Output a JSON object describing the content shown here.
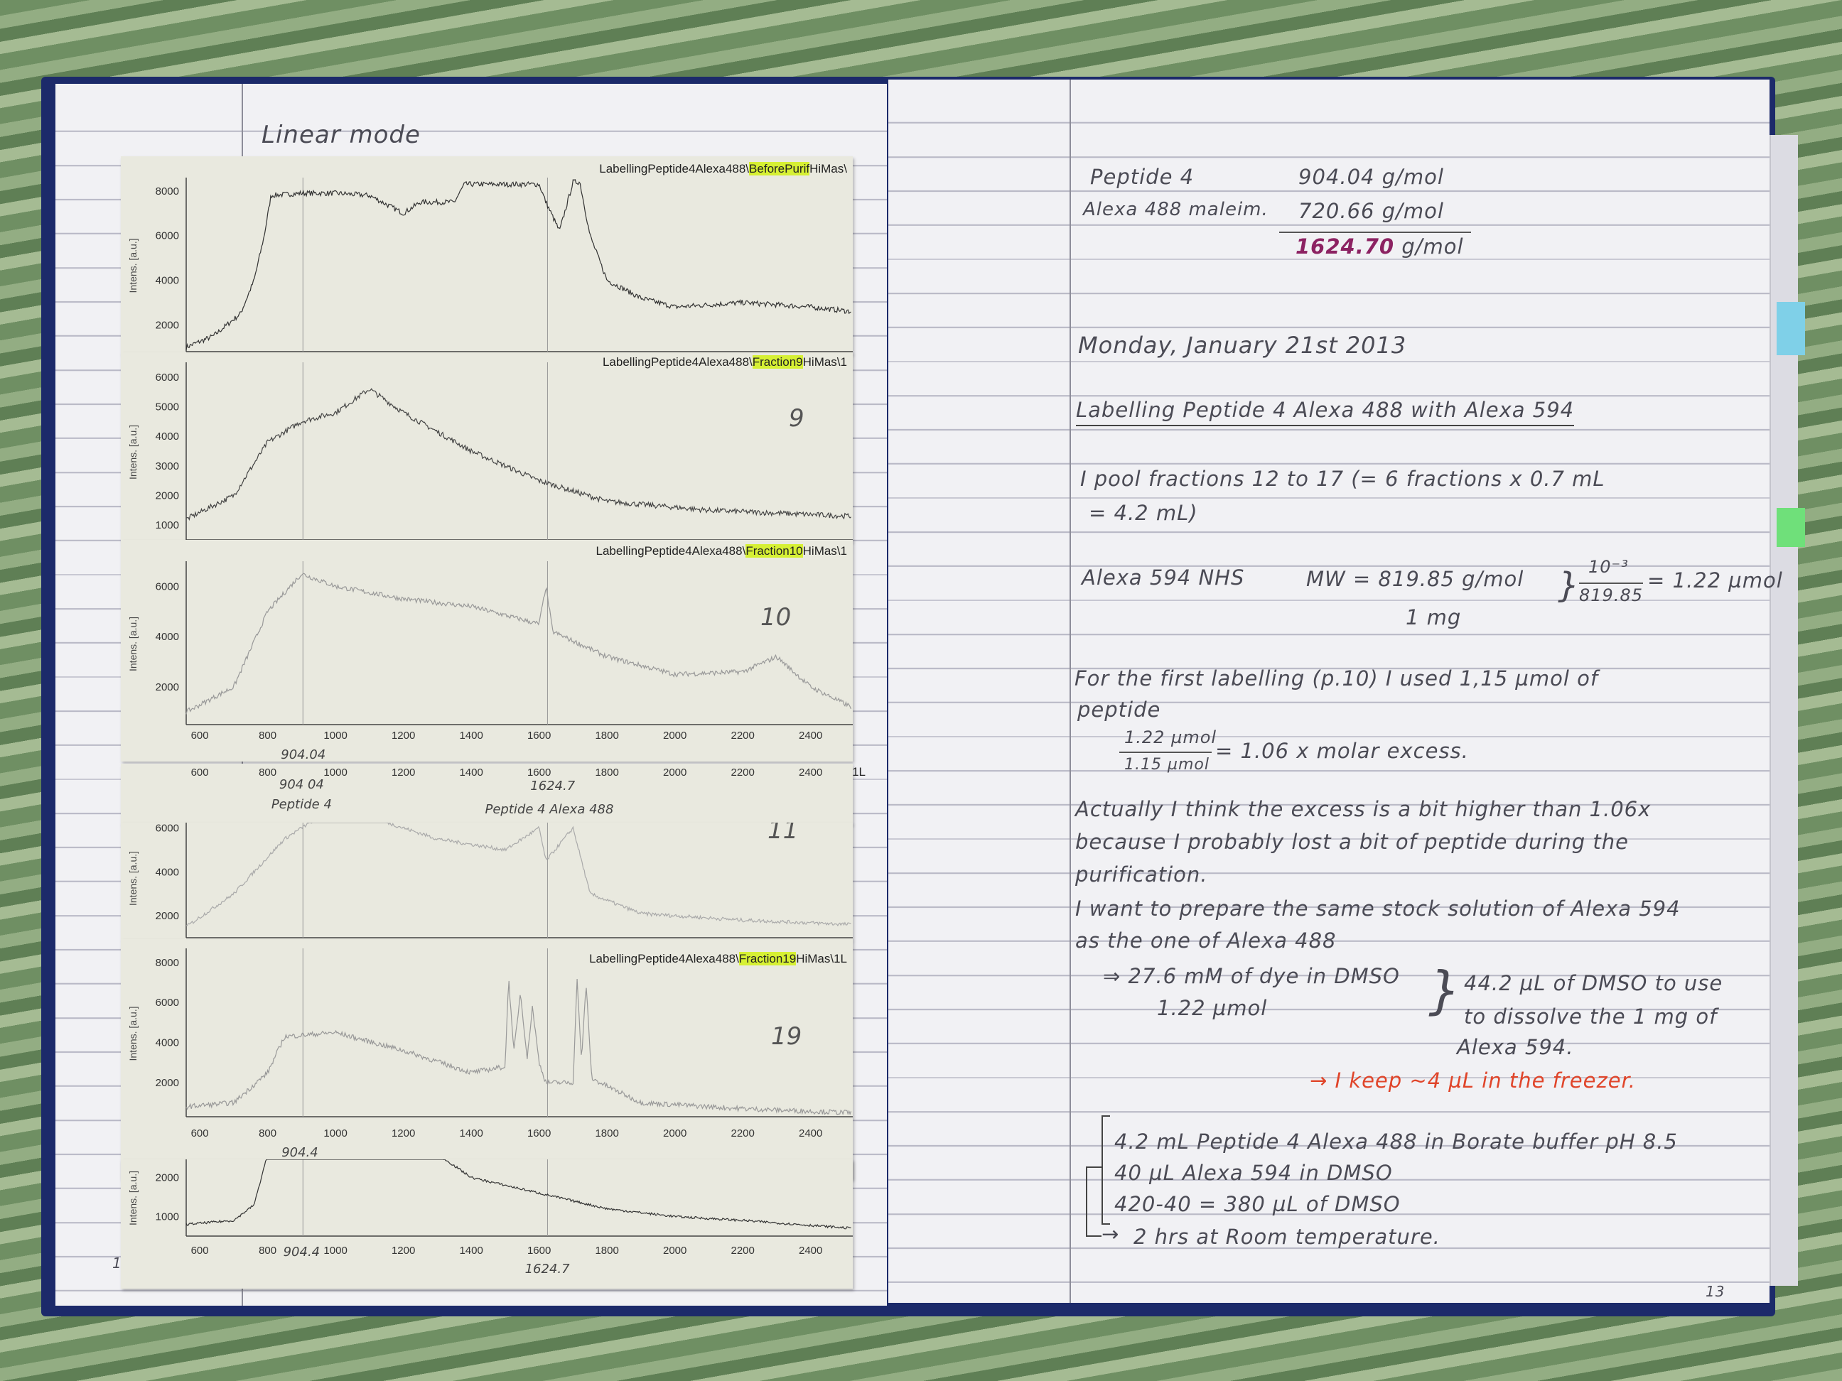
{
  "left_page": {
    "title": "Linear mode",
    "page_number": "12",
    "header_prefix": "LabellingPeptide4Alexa488\\",
    "y_axis_label": "Intens. [a.u.]",
    "x_ticks": [
      "600",
      "800",
      "1000",
      "1200",
      "1400",
      "1600",
      "1800",
      "2000",
      "2200",
      "2400"
    ],
    "strips": [
      {
        "sample": "BeforePurif",
        "suffix": "HiMas\\",
        "y_ticks": [
          "2000",
          "4000",
          "6000",
          "8000"
        ],
        "number": ""
      },
      {
        "sample": "Fraction9",
        "suffix": "HiMas\\1",
        "y_ticks": [
          "1000",
          "2000",
          "3000",
          "4000",
          "5000",
          "6000"
        ],
        "number": "9"
      },
      {
        "sample": "Fraction10",
        "suffix": "HiMas\\1",
        "y_ticks": [
          "2000",
          "4000",
          "6000"
        ],
        "number": "10",
        "annotations": [
          "904.04",
          "1624.7"
        ]
      },
      {
        "annotations": [
          "904 04",
          "Peptide 4",
          "1624.7",
          "Peptide 4 Alexa 488"
        ],
        "edge_text": "1L"
      },
      {
        "y_ticks": [
          "2000",
          "4000",
          "6000"
        ],
        "number": "11"
      },
      {
        "sample": "Fraction19",
        "suffix": "HiMas\\1L",
        "y_ticks": [
          "2000",
          "4000",
          "6000",
          "8000"
        ],
        "number": "19",
        "annotations": [
          "904.4",
          "1624.7"
        ]
      },
      {
        "y_ticks": [
          "1000",
          "2000"
        ],
        "annotations": [
          "904.4",
          "1624.7"
        ]
      }
    ]
  },
  "right_page": {
    "page_number": "13",
    "mw": {
      "peptide_label": "Peptide 4",
      "peptide_value": "904.04 g/mol",
      "dye_label": "Alexa 488 maleim.",
      "dye_value": "720.66 g/mol",
      "total_value": "1624.70",
      "total_unit": "g/mol"
    },
    "date": "Monday, January 21st 2013",
    "heading": "Labelling Peptide 4 Alexa 488 with Alexa 594",
    "pool_line1": "I pool fractions 12 to 17 (= 6 fractions x 0.7 mL",
    "pool_line2": "= 4.2 mL)",
    "nhs_label": "Alexa 594 NHS",
    "nhs_mw": "MW = 819.85 g/mol",
    "nhs_mass": "1 mg",
    "nhs_num": "10⁻³",
    "nhs_den": "819.85",
    "nhs_result": "= 1.22 µmol",
    "first_line1": "For the first labelling (p.10) I used 1,15 µmol of",
    "first_line2": "peptide",
    "ratio_num": "1.22 µmol",
    "ratio_den": "1.15 µmol",
    "ratio_result": "= 1.06 x molar excess.",
    "actually": [
      "Actually I think the excess is a bit higher than 1.06x",
      "because I probably lost a bit of peptide during the",
      "purification.",
      "I want to prepare the same stock solution of Alexa 594",
      "as the one of Alexa 488"
    ],
    "stock_line1": "⇒ 27.6 mM of dye in DMSO",
    "stock_line2": "1.22 µmol",
    "dmso_line1": "44.2 µL of DMSO to use",
    "dmso_line2": "to dissolve the 1 mg of",
    "dmso_line3": "Alexa 594.",
    "freezer_note": "→ I keep ~4 µL in the freezer.",
    "recipe": [
      "4.2 mL Peptide 4 Alexa 488 in Borate buffer pH 8.5",
      "40 µL Alexa 594 in DMSO",
      "420-40 = 380 µL of DMSO"
    ],
    "incubation": "2 hrs at Room temperature."
  },
  "colors": {
    "highlight": "#d6f034",
    "red_ink": "#e0452a",
    "purple_ink": "#8c2262",
    "cover": "#1c2a6a",
    "tab_blue": "#7fd0e8",
    "tab_green": "#6fe07a"
  }
}
